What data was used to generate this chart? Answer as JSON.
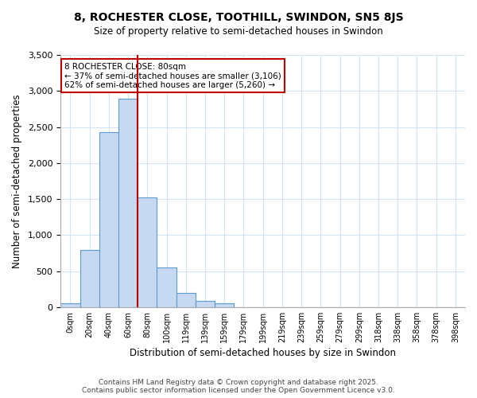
{
  "title": "8, ROCHESTER CLOSE, TOOTHILL, SWINDON, SN5 8JS",
  "subtitle": "Size of property relative to semi-detached houses in Swindon",
  "bar_labels": [
    "0sqm",
    "20sqm",
    "40sqm",
    "60sqm",
    "80sqm",
    "100sqm",
    "119sqm",
    "139sqm",
    "159sqm",
    "179sqm",
    "199sqm",
    "219sqm",
    "239sqm",
    "259sqm",
    "279sqm",
    "299sqm",
    "318sqm",
    "338sqm",
    "358sqm",
    "378sqm",
    "398sqm"
  ],
  "bar_values": [
    50,
    790,
    2430,
    2890,
    1520,
    555,
    195,
    90,
    50,
    0,
    0,
    0,
    0,
    0,
    0,
    0,
    0,
    0,
    0,
    0,
    0
  ],
  "bar_color": "#c6d9f0",
  "bar_edge_color": "#5b9bd5",
  "marker_bin_index": 4,
  "marker_color": "#c00000",
  "annotation_title": "8 ROCHESTER CLOSE: 80sqm",
  "annotation_line1": "← 37% of semi-detached houses are smaller (3,106)",
  "annotation_line2": "62% of semi-detached houses are larger (5,260) →",
  "annotation_box_color": "#c00000",
  "xlabel": "Distribution of semi-detached houses by size in Swindon",
  "ylabel": "Number of semi-detached properties",
  "ylim": [
    0,
    3500
  ],
  "yticks": [
    0,
    500,
    1000,
    1500,
    2000,
    2500,
    3000,
    3500
  ],
  "footer1": "Contains HM Land Registry data © Crown copyright and database right 2025.",
  "footer2": "Contains public sector information licensed under the Open Government Licence v3.0.",
  "bg_color": "#ffffff",
  "grid_color": "#d0e4f5"
}
